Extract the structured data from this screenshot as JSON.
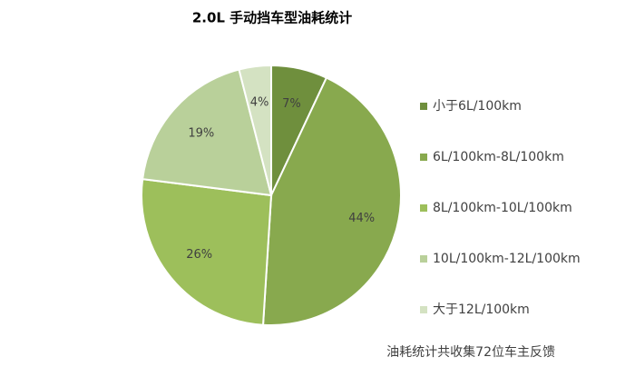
{
  "chart_data": {
    "type": "pie",
    "title": "2.0L 手动挡车型油耗统计",
    "categories": [
      "小于6L/100km",
      "6L/100km-8L/100km",
      "8L/100km-10L/100km",
      "10L/100km-12L/100km",
      "大于12L/100km"
    ],
    "values": [
      7,
      44,
      26,
      19,
      4
    ],
    "value_labels": [
      "7%",
      "44%",
      "26%",
      "19%",
      "4%"
    ],
    "colors": [
      "#6f8f3d",
      "#88a94e",
      "#9dbf5b",
      "#b9d09a",
      "#d4e2c2"
    ],
    "legend": "right",
    "annotation": "油耗统计共收集72位车主反馈"
  }
}
